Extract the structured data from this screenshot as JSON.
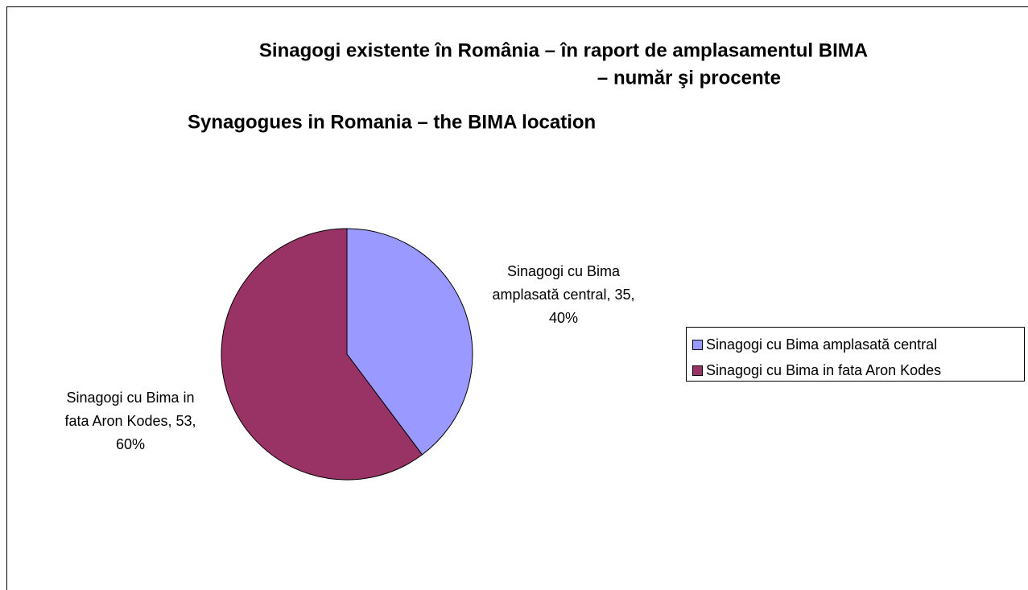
{
  "chart_data": {
    "type": "pie",
    "title": [
      "Sinagogi existente în România – în raport de amplasamentul BIMA",
      "– număr şi procente"
    ],
    "subtitle": "Synagogues in Romania – the BIMA location",
    "categories": [
      "Sinagogi cu Bima amplasată central",
      "Sinagogi cu Bima in fata Aron Kodes"
    ],
    "values": [
      35,
      53
    ],
    "value_labels": [
      "Sinagogi cu Bima amplasată central, 35, 40%",
      "Sinagogi cu Bima in fata Aron Kodes, 53, 60%"
    ],
    "colors": [
      "#9999ff",
      "#993366"
    ],
    "legend": "right"
  }
}
